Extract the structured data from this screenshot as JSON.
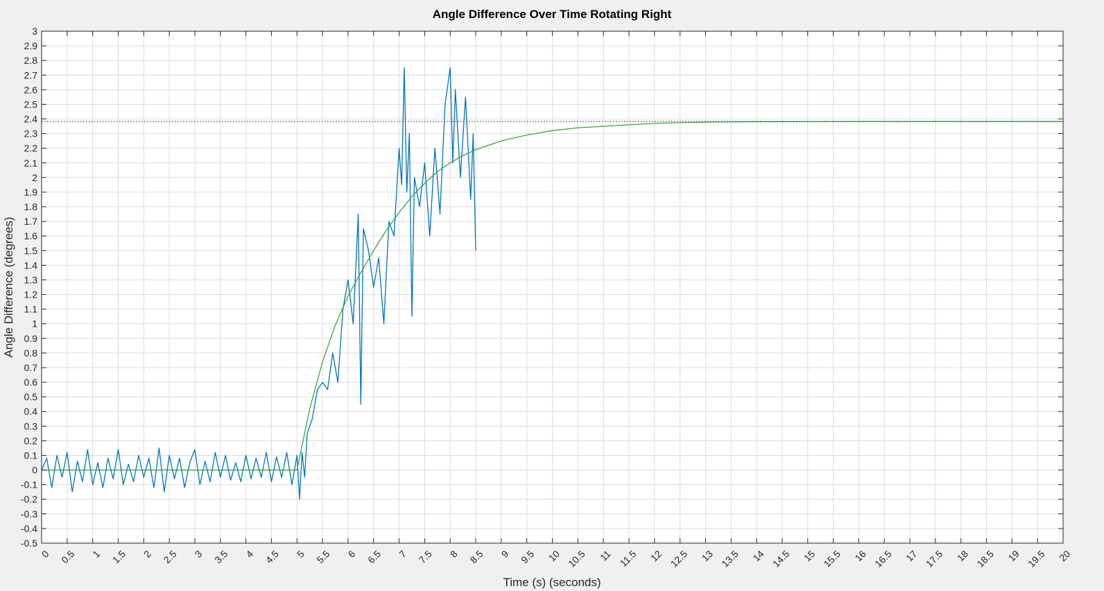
{
  "chart_data": {
    "type": "line",
    "title": "Angle Difference Over Time Rotating Right",
    "xlabel": "Time (s) (seconds)",
    "ylabel": "Angle Difference (degrees)",
    "xlim": [
      0,
      20
    ],
    "ylim": [
      -0.5,
      3
    ],
    "x_ticks": [
      0,
      0.5,
      1,
      1.5,
      2,
      2.5,
      3,
      3.5,
      4,
      4.5,
      5,
      5.5,
      6,
      6.5,
      7,
      7.5,
      8,
      8.5,
      9,
      9.5,
      10,
      10.5,
      11,
      11.5,
      12,
      12.5,
      13,
      13.5,
      14,
      14.5,
      15,
      15.5,
      16,
      16.5,
      17,
      17.5,
      18,
      18.5,
      19,
      19.5,
      20
    ],
    "y_ticks": [
      -0.5,
      -0.4,
      -0.3,
      -0.2,
      -0.1,
      0,
      0.1,
      0.2,
      0.3,
      0.4,
      0.5,
      0.6,
      0.7,
      0.8,
      0.9,
      1,
      1.1,
      1.2,
      1.3,
      1.4,
      1.5,
      1.6,
      1.7,
      1.8,
      1.9,
      2,
      2.1,
      2.2,
      2.3,
      2.4,
      2.5,
      2.6,
      2.7,
      2.8,
      2.9,
      3
    ],
    "grid": true,
    "colors": {
      "measured": "#0072bd",
      "model": "#2ca02c",
      "reference": "#333333",
      "grid": "#dcdcdc",
      "axes": "#262626",
      "plot_bg": "#ffffff",
      "figure_bg": "#f0f0f0"
    },
    "series": [
      {
        "style": "solid",
        "color": "#0072bd",
        "x": [
          0,
          0.1,
          0.2,
          0.3,
          0.4,
          0.5,
          0.6,
          0.7,
          0.8,
          0.9,
          1,
          1.1,
          1.2,
          1.3,
          1.4,
          1.5,
          1.6,
          1.7,
          1.8,
          1.9,
          2,
          2.1,
          2.2,
          2.3,
          2.4,
          2.5,
          2.6,
          2.7,
          2.8,
          2.9,
          3,
          3.1,
          3.2,
          3.3,
          3.4,
          3.5,
          3.6,
          3.7,
          3.8,
          3.9,
          4,
          4.1,
          4.2,
          4.3,
          4.4,
          4.5,
          4.6,
          4.7,
          4.8,
          4.9,
          5,
          5.05,
          5.1,
          5.15,
          5.2,
          5.3,
          5.4,
          5.5,
          5.6,
          5.7,
          5.8,
          5.9,
          6,
          6.1,
          6.2,
          6.25,
          6.3,
          6.4,
          6.5,
          6.6,
          6.7,
          6.8,
          6.9,
          7,
          7.05,
          7.1,
          7.15,
          7.2,
          7.25,
          7.3,
          7.4,
          7.5,
          7.6,
          7.7,
          7.8,
          7.9,
          8,
          8.05,
          8.1,
          8.2,
          8.3,
          8.4,
          8.45,
          8.5
        ],
        "y": [
          0,
          0.08,
          -0.12,
          0.1,
          -0.05,
          0.12,
          -0.15,
          0.06,
          -0.08,
          0.14,
          -0.1,
          0.05,
          -0.12,
          0.08,
          -0.06,
          0.14,
          -0.1,
          0.04,
          -0.08,
          0.1,
          -0.05,
          0.08,
          -0.12,
          0.15,
          -0.15,
          0.1,
          -0.06,
          0.08,
          -0.12,
          0.05,
          0.14,
          -0.1,
          0.06,
          -0.08,
          0.12,
          -0.05,
          0.1,
          -0.07,
          0.05,
          -0.08,
          0.1,
          -0.06,
          0.08,
          -0.05,
          0.12,
          -0.08,
          0.09,
          -0.05,
          0.12,
          -0.1,
          0.1,
          -0.2,
          0.12,
          -0.05,
          0.25,
          0.35,
          0.55,
          0.6,
          0.55,
          0.8,
          0.6,
          1.1,
          1.3,
          1.0,
          1.75,
          0.45,
          1.65,
          1.5,
          1.25,
          1.45,
          1.0,
          1.7,
          1.6,
          2.2,
          1.95,
          2.75,
          1.9,
          2.3,
          1.05,
          2.0,
          1.8,
          2.1,
          1.6,
          2.2,
          1.75,
          2.5,
          2.75,
          2.1,
          2.6,
          2.0,
          2.55,
          1.85,
          2.3,
          1.5
        ]
      },
      {
        "style": "solid",
        "color": "#2ca02c",
        "x": [
          0,
          1,
          2,
          3,
          4,
          5,
          5.25,
          5.5,
          5.75,
          6,
          6.25,
          6.5,
          6.75,
          7,
          7.25,
          7.5,
          7.75,
          8,
          8.25,
          8.5,
          8.75,
          9,
          9.5,
          10,
          10.5,
          11,
          11.5,
          12,
          12.5,
          13,
          13.5,
          14,
          15,
          16,
          17,
          18,
          19,
          20
        ],
        "y": [
          0,
          0,
          0,
          0,
          0,
          0,
          0.42,
          0.74,
          0.99,
          1.19,
          1.35,
          1.5,
          1.64,
          1.76,
          1.87,
          1.96,
          2.04,
          2.1,
          2.15,
          2.19,
          2.22,
          2.25,
          2.29,
          2.32,
          2.34,
          2.35,
          2.36,
          2.37,
          2.375,
          2.378,
          2.38,
          2.381,
          2.382,
          2.383,
          2.383,
          2.383,
          2.383,
          2.383
        ]
      },
      {
        "style": "dotted",
        "color": "#333333",
        "x": [
          0,
          20
        ],
        "y": [
          2.383,
          2.383
        ]
      }
    ]
  }
}
